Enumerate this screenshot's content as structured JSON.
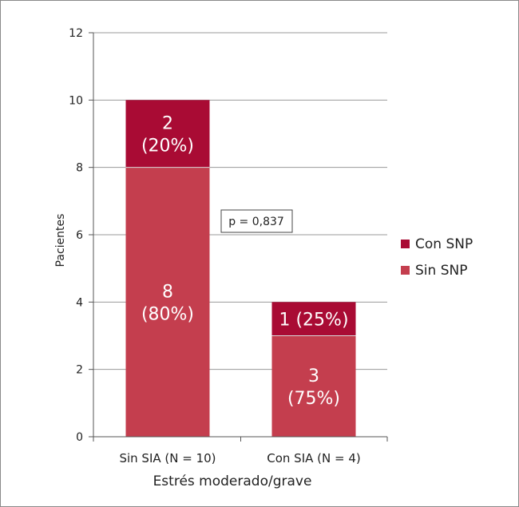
{
  "chart_data": {
    "type": "bar",
    "stacked": true,
    "categories": [
      "Sin SIA (N = 10)",
      "Con SIA (N = 4)"
    ],
    "series": [
      {
        "name": "Sin SNP",
        "color": "#c43e4e",
        "values": [
          8,
          3
        ],
        "labels": [
          [
            "8",
            "(80%)"
          ],
          [
            "3",
            "(75%)"
          ]
        ]
      },
      {
        "name": "Con SNP",
        "color": "#a90b34",
        "values": [
          2,
          1
        ],
        "labels": [
          [
            "2",
            "(20%)"
          ],
          [
            "1 (25%)"
          ]
        ]
      }
    ],
    "xlabel": "Estrés moderado/grave",
    "ylabel": "Pacientes",
    "ylim": [
      0,
      12
    ],
    "yticks": [
      0,
      2,
      4,
      6,
      8,
      10,
      12
    ],
    "grid": true,
    "legend": {
      "position": "right",
      "entries": [
        {
          "name": "Con SNP",
          "color": "#a90b34"
        },
        {
          "name": "Sin SNP",
          "color": "#c43e4e"
        }
      ]
    },
    "annotation": "p = 0,837"
  }
}
